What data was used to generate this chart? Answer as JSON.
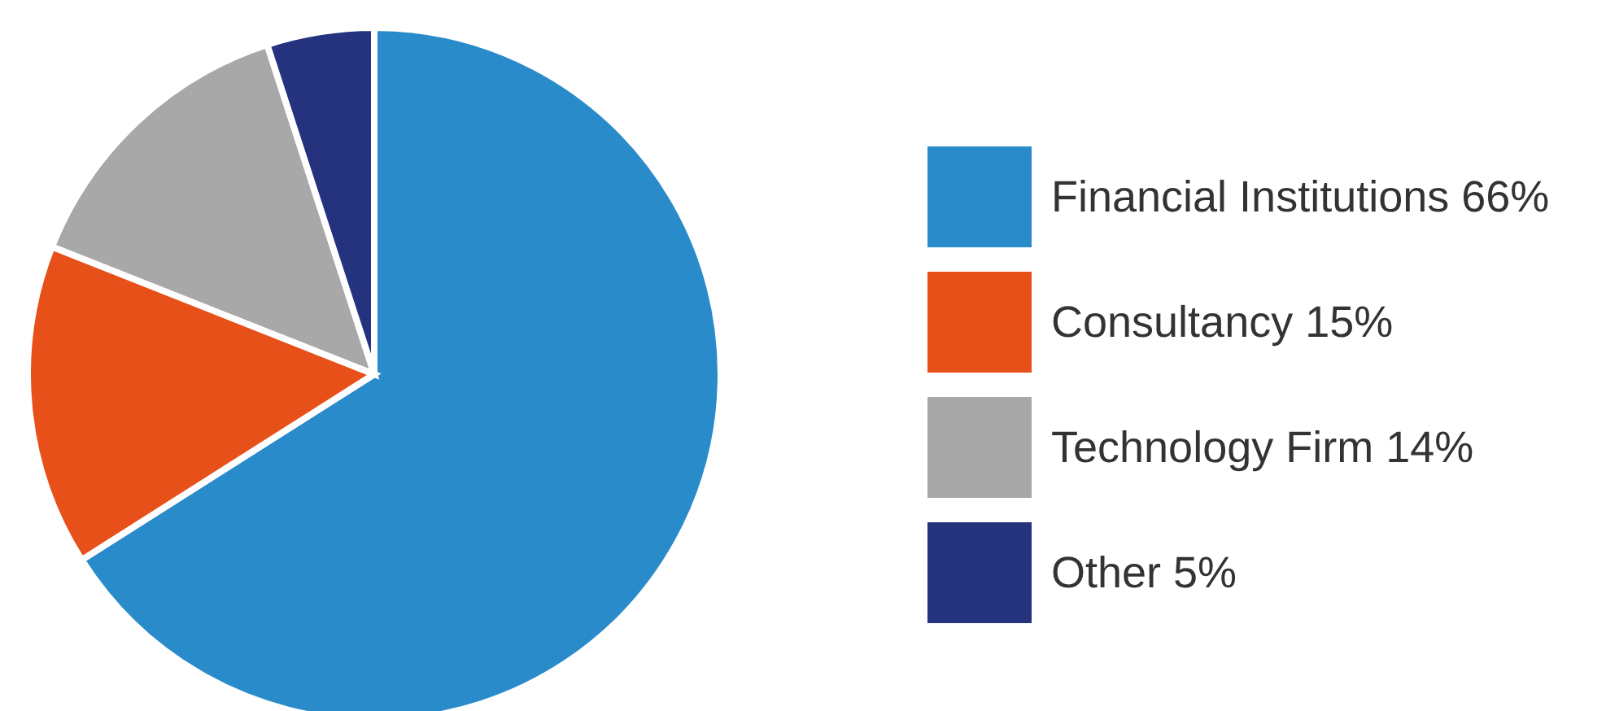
{
  "chart_data": {
    "type": "pie",
    "categories": [
      "Financial Institutions",
      "Consultancy",
      "Technology Firm",
      "Other"
    ],
    "values": [
      66,
      15,
      14,
      5
    ],
    "value_labels": [
      "66%",
      "15%",
      "14%",
      "5%"
    ],
    "colors": [
      "#2a8bcb",
      "#e8501a",
      "#a8a8a8",
      "#25337f"
    ],
    "legend": "right"
  }
}
